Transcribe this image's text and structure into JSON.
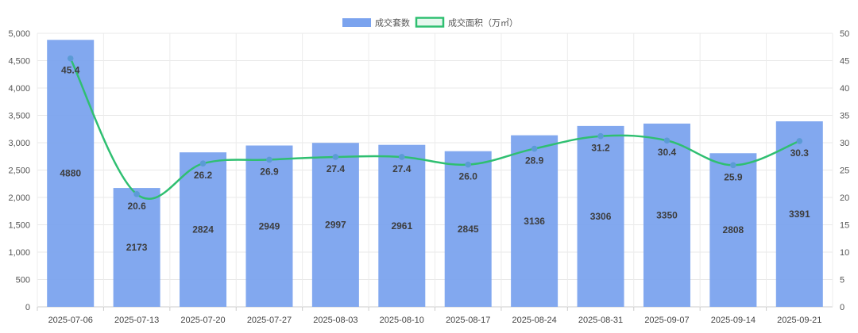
{
  "chart_data": {
    "type": "bar",
    "categories": [
      "2025-07-06",
      "2025-07-13",
      "2025-07-20",
      "2025-07-27",
      "2025-08-03",
      "2025-08-10",
      "2025-08-17",
      "2025-08-24",
      "2025-08-31",
      "2025-09-07",
      "2025-09-14",
      "2025-09-21"
    ],
    "series": [
      {
        "name": "成交套数",
        "type": "bar",
        "axis": "left",
        "color": "#7ba3ee",
        "values": [
          4880,
          2173,
          2824,
          2949,
          2997,
          2961,
          2845,
          3136,
          3306,
          3350,
          2808,
          3391
        ]
      },
      {
        "name": "成交面积（万㎡）",
        "type": "line",
        "axis": "right",
        "color": "#2fbf71",
        "point_color": "#5b9bd5",
        "smooth": true,
        "values": [
          45.4,
          20.6,
          26.2,
          26.9,
          27.4,
          27.4,
          26.0,
          28.9,
          31.2,
          30.4,
          25.9,
          30.3
        ],
        "labels": [
          "45.4",
          "20.6",
          "26.2",
          "26.9",
          "27.4",
          "27.4",
          "26.0",
          "28.9",
          "31.2",
          "30.4",
          "25.9",
          "30.3"
        ]
      }
    ],
    "bar_labels": [
      "4880",
      "2173",
      "2824",
      "2949",
      "2997",
      "2961",
      "2845",
      "3136",
      "3306",
      "3350",
      "2808",
      "3391"
    ],
    "y_left": {
      "lim": [
        0,
        5000
      ],
      "ticks": [
        0,
        500,
        1000,
        1500,
        2000,
        2500,
        3000,
        3500,
        4000,
        4500,
        5000
      ],
      "tick_labels": [
        "0",
        "500",
        "1,000",
        "1,500",
        "2,000",
        "2,500",
        "3,000",
        "3,500",
        "4,000",
        "4,500",
        "5,000"
      ]
    },
    "y_right": {
      "lim": [
        0,
        50
      ],
      "ticks": [
        0,
        5,
        10,
        15,
        20,
        25,
        30,
        35,
        40,
        45,
        50
      ],
      "tick_labels": [
        "0",
        "5",
        "10",
        "15",
        "20",
        "25",
        "30",
        "35",
        "40",
        "45",
        "50"
      ]
    },
    "grid": true,
    "legend": {
      "position": "top-center",
      "items": [
        "成交套数",
        "成交面积（万㎡）"
      ]
    },
    "title": "",
    "xlabel": "",
    "ylabel": ""
  }
}
